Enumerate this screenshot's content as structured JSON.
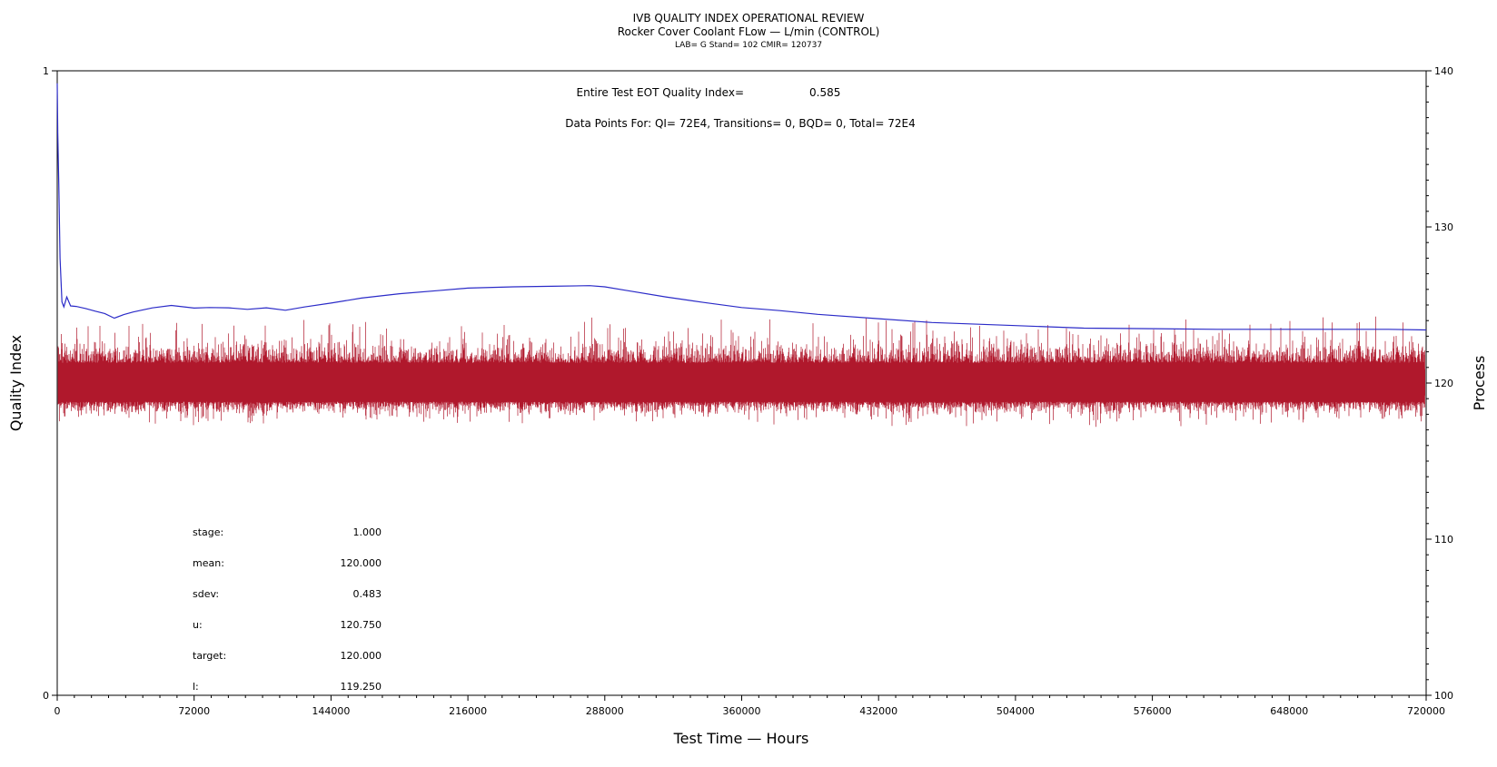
{
  "header": {
    "title": "IVB QUALITY INDEX OPERATIONAL REVIEW",
    "subtitle": "Rocker Cover Coolant FLow — L/min (CONTROL)",
    "info": "LAB= G Stand= 102 CMIR= 120737"
  },
  "annotations": {
    "eot_label": "Entire Test EOT Quality Index=",
    "eot_value": "0.585",
    "points_line": "Data Points For: QI=  72E4, Transitions=     0, BQD=     0, Total=  72E4"
  },
  "stats": [
    {
      "label": "stage:",
      "value": "1.000"
    },
    {
      "label": "mean:",
      "value": "120.000"
    },
    {
      "label": "sdev:",
      "value": "0.483"
    },
    {
      "label": "u:",
      "value": "120.750"
    },
    {
      "label": "target:",
      "value": "120.000"
    },
    {
      "label": "l:",
      "value": "119.250"
    }
  ],
  "colors": {
    "quality_index_line": "#2b2bc8",
    "process_band": "#b0182c",
    "axes": "#000000"
  },
  "chart_data": {
    "type": "line",
    "xlabel": "Test Time — Hours",
    "ylabel_left": "Quality Index",
    "ylabel_right": "Process",
    "xlim": [
      0,
      720000
    ],
    "ylim_left": [
      0,
      1
    ],
    "ylim_right": [
      100,
      140
    ],
    "x_ticks": [
      0,
      72000,
      144000,
      216000,
      288000,
      360000,
      432000,
      504000,
      576000,
      648000,
      720000
    ],
    "x_tick_labels": [
      "0",
      "72000",
      "144000",
      "216000",
      "288000",
      "360000",
      "432000",
      "504000",
      "576000",
      "648000",
      "720000"
    ],
    "y_left_ticks": [
      0,
      1
    ],
    "y_left_tick_labels": [
      "0",
      "1"
    ],
    "y_right_ticks": [
      100,
      110,
      120,
      130,
      140
    ],
    "y_right_tick_labels": [
      "100",
      "110",
      "120",
      "130",
      "140"
    ],
    "grid": false,
    "series": [
      {
        "axis": "left",
        "x": [
          0,
          300,
          800,
          1500,
          2500,
          3500,
          5000,
          7000,
          10000,
          15000,
          20000,
          25000,
          30000,
          35000,
          40000,
          50000,
          60000,
          72000,
          80000,
          90000,
          100000,
          110000,
          120000,
          130000,
          144000,
          160000,
          180000,
          200000,
          216000,
          240000,
          260000,
          280000,
          288000,
          300000,
          320000,
          340000,
          360000,
          380000,
          400000,
          432000,
          460000,
          504000,
          540000,
          576000,
          610000,
          648000,
          680000,
          700000,
          720000
        ],
        "y": [
          0.98,
          0.9,
          0.82,
          0.7,
          0.63,
          0.62,
          0.635,
          0.625,
          0.62,
          0.618,
          0.615,
          0.61,
          0.605,
          0.61,
          0.615,
          0.622,
          0.622,
          0.62,
          0.62,
          0.62,
          0.62,
          0.619,
          0.619,
          0.62,
          0.628,
          0.636,
          0.643,
          0.648,
          0.652,
          0.654,
          0.655,
          0.656,
          0.654,
          0.648,
          0.638,
          0.629,
          0.621,
          0.616,
          0.61,
          0.603,
          0.597,
          0.592,
          0.588,
          0.587,
          0.586,
          0.586,
          0.586,
          0.586,
          0.585
        ]
      },
      {
        "axis": "right",
        "band_center": 120.0,
        "band_typical_low": 118.8,
        "band_typical_high": 121.3,
        "band_extreme_low": 117.1,
        "band_extreme_high": 124.4,
        "x_range": [
          0,
          720000
        ]
      }
    ]
  }
}
